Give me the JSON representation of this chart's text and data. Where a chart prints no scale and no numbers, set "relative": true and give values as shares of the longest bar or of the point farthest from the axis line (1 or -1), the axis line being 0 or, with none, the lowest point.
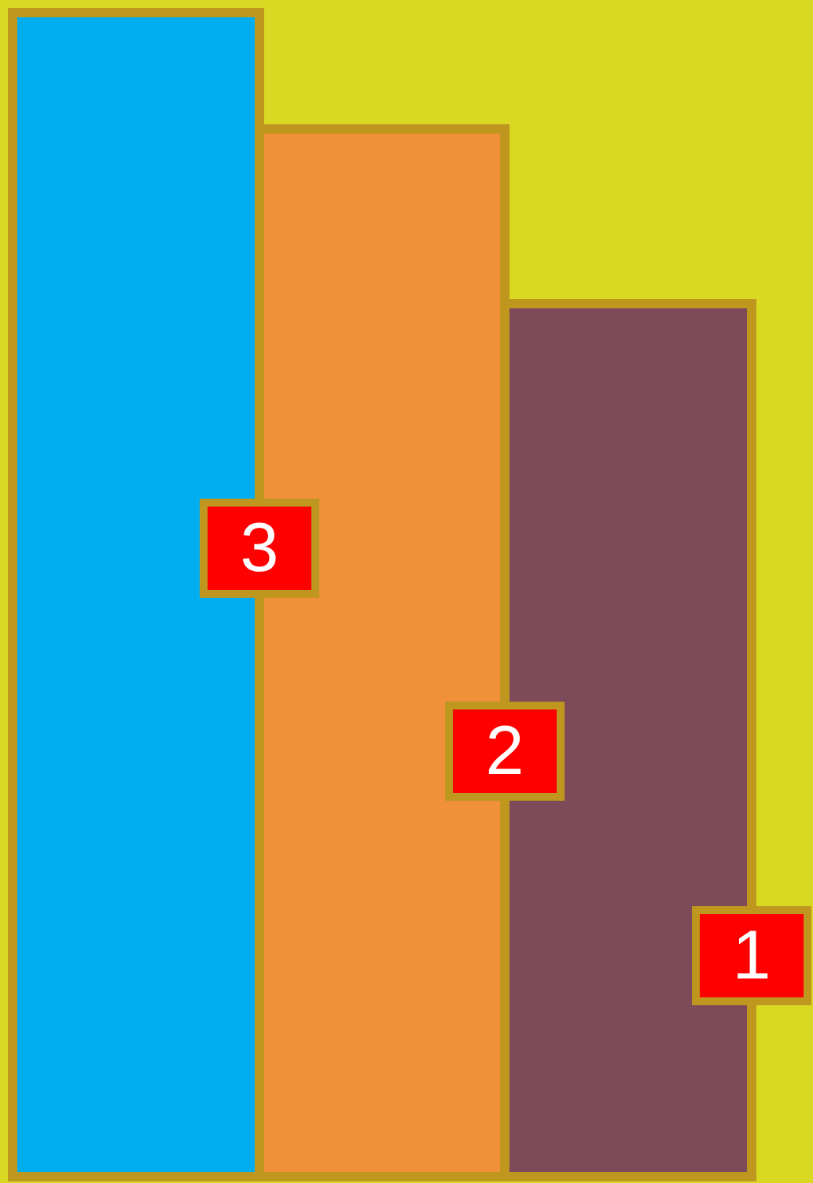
{
  "chart_data": {
    "type": "bar",
    "relative": true,
    "categories": [
      null,
      null,
      null
    ],
    "values": [
      1,
      0.9,
      0.75
    ],
    "colors": [
      "#00aeef",
      "#f0913a",
      "#7d4a5a"
    ],
    "annotations": [
      "3",
      "2",
      "1"
    ]
  }
}
